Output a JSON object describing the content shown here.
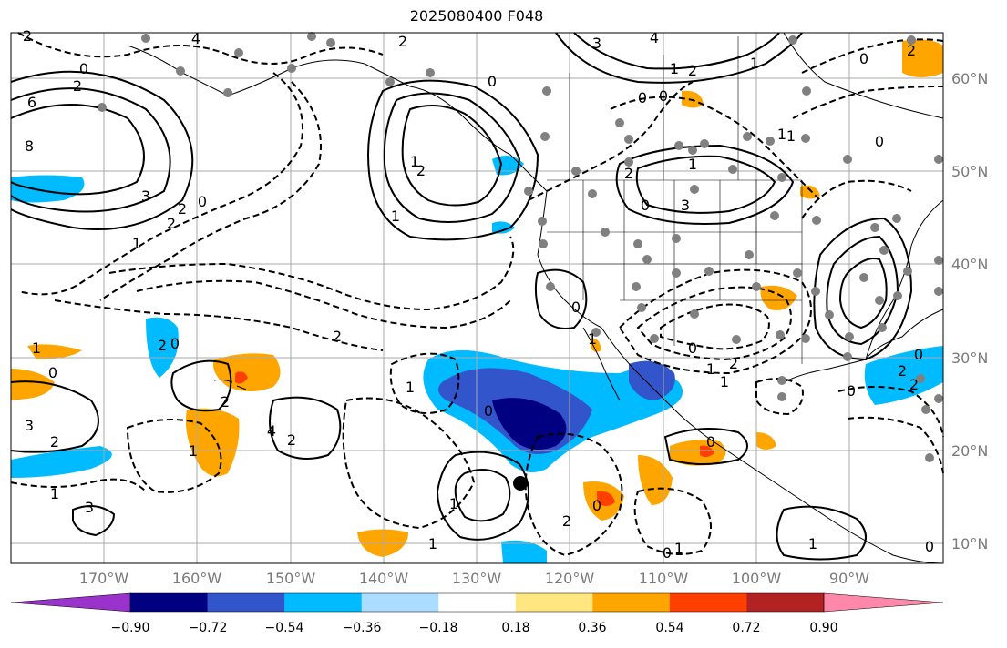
{
  "title": "2025080400 F048",
  "lat_labels": [
    "60°N",
    "50°N",
    "40°N",
    "30°N",
    "20°N",
    "10°N"
  ],
  "lon_labels": [
    "170°W",
    "160°W",
    "150°W",
    "140°W",
    "130°W",
    "120°W",
    "110°W",
    "100°W",
    "90°W"
  ],
  "colorbar": {
    "tick_labels": [
      "−0.90",
      "−0.72",
      "−0.54",
      "−0.36",
      "−0.18",
      "0.18",
      "0.36",
      "0.54",
      "0.72",
      "0.90"
    ],
    "colors": [
      "#9933cc",
      "#000080",
      "#3355cc",
      "#00bbff",
      "#aaddff",
      "#ffffff",
      "#ffe680",
      "#ffa500",
      "#ff4000",
      "#b22222",
      "#ff88aa"
    ]
  },
  "contour_labels": [
    "2",
    "4",
    "2",
    "0",
    "2",
    "4",
    "6",
    "8",
    "3",
    "1",
    "2",
    "0",
    "2",
    "1",
    "1",
    "0",
    "3",
    "2",
    "3",
    "1",
    "2",
    "4",
    "2",
    "2",
    "0",
    "0",
    "1",
    "2",
    "1",
    "3",
    "2",
    "0",
    "1",
    "1",
    "0",
    "1",
    "0",
    "0",
    "3",
    "2",
    "0",
    "1",
    "0",
    "1",
    "1",
    "2",
    "0",
    "1",
    "1",
    "0",
    "2",
    "0",
    "1",
    "2",
    "1",
    "0",
    "1",
    "1",
    "1",
    "0",
    "2",
    "2",
    "0",
    "0",
    "2",
    "0"
  ]
}
